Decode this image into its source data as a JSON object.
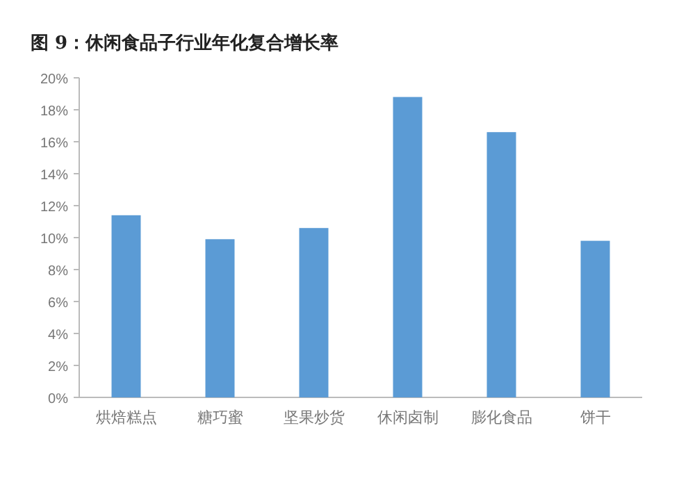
{
  "chart_data": {
    "type": "bar",
    "title": "图 9：休闲食品子行业年化复合增长率",
    "categories": [
      "烘焙糕点",
      "糖巧蜜",
      "坚果炒货",
      "休闲卤制",
      "膨化食品",
      "饼干"
    ],
    "values": [
      11.4,
      9.9,
      10.6,
      18.8,
      16.6,
      9.8
    ],
    "color": "#5b9bd5",
    "ylim": [
      0,
      20
    ],
    "yticks": [
      {
        "value": 0,
        "label": "0%"
      },
      {
        "value": 2,
        "label": "2%"
      },
      {
        "value": 4,
        "label": "4%"
      },
      {
        "value": 6,
        "label": "6%"
      },
      {
        "value": 8,
        "label": "8%"
      },
      {
        "value": 10,
        "label": "10%"
      },
      {
        "value": 12,
        "label": "12%"
      },
      {
        "value": 14,
        "label": "14%"
      },
      {
        "value": 16,
        "label": "16%"
      },
      {
        "value": 18,
        "label": "18%"
      },
      {
        "value": 20,
        "label": "20%"
      }
    ],
    "grid": false
  }
}
